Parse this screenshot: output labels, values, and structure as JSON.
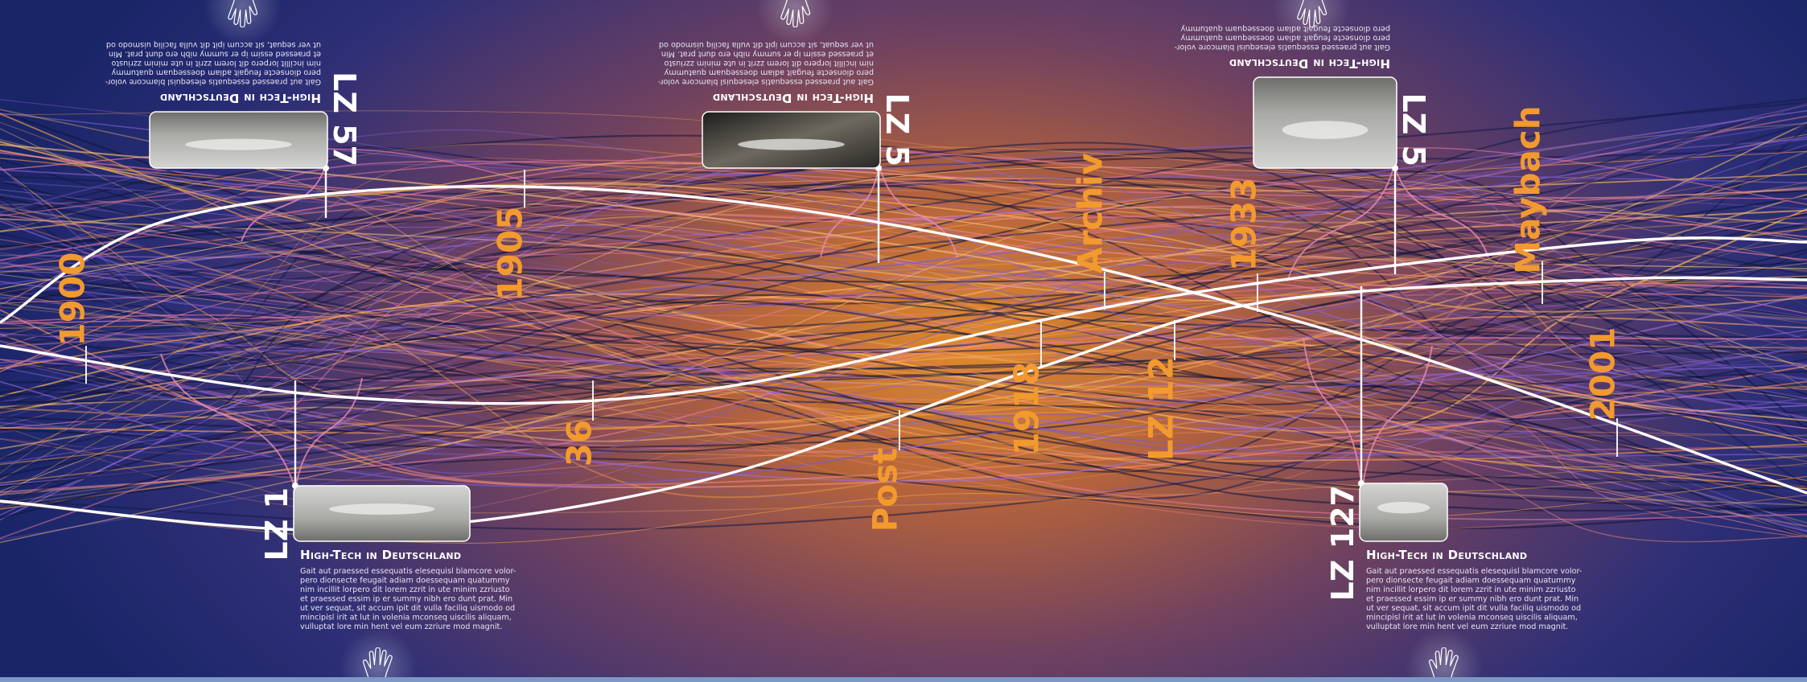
{
  "timeline_labels": [
    "1900",
    "1905",
    "36",
    "Post",
    "1918",
    "Archiv",
    "1933",
    "LZ 12",
    "Maybach",
    "2001"
  ],
  "cards": [
    {
      "label": "LZ 57",
      "heading": "High-Tech in Deutschland",
      "body": [
        "Gait aut praessed essequatis elesequisl blamcore volor-",
        "pero dionsecte feugait adiam doessequam quatummy",
        "nim incillit lorpero dit lorem zzrit in ute minim zzriusto",
        "et praessed essim ip er summy nibh ero dunt prat. Min",
        "ut ver sequat, sit accum ipit dit vulla faciliq uismodo od"
      ]
    },
    {
      "label": "LZ 5",
      "heading": "High-Tech in Deutschland",
      "body": [
        "Gait aut praessed essequatis elesequisl blamcore volor-",
        "pero dionsecte feugait adiam doessequam quatummy",
        "nim incillit lorpero dit lorem zzrit in ute minim zzriusto",
        "et praessed essim ip er summy nibh ero dunt prat. Min",
        "ut ver sequat, sit accum ipit dit vulla faciliq uismodo od"
      ]
    },
    {
      "label": "LZ 5",
      "heading": "High-Tech in Deutschland",
      "body": [
        "Gait aut praessed essequatis elesequisl blamcore volor-",
        "pero dionsecte feugait adiam doessequam quatummy",
        "pero dionsecte feugait adiam doessequam quatummy"
      ]
    },
    {
      "label": "LZ 1",
      "heading": "High-Tech in Deutschland",
      "body": [
        "Gait aut praessed essequatis elesequisl blamcore volor-",
        "pero dionsecte feugait adiam doessequam quatummy",
        "nim incillit lorpero dit lorem zzrit in ute minim zzriusto",
        "et praessed essim ip er summy nibh ero dunt prat. Min",
        "ut ver sequat, sit accum ipit dit vulla faciliq uismodo od",
        "mincipisl irit at lut in volenia mconseq uiscilis aliquam,",
        "vulluptat lore min hent vel eum zzriure mod magnit."
      ]
    },
    {
      "label": "LZ 127",
      "heading": "High-Tech in Deutschland",
      "body": [
        "Gait aut praessed essequatis elesequisl blamcore volor-",
        "pero dionsecte feugait adiam doessequam quatummy",
        "nim incillit lorpero dit lorem zzrit in ute minim zzriusto",
        "et praessed essim ip er summy nibh ero dunt prat. Min",
        "ut ver sequat, sit accum ipit dit vulla faciliq uismodo od",
        "mincipisl irit at lut in volenia mconseq uiscilis aliquam,",
        "vulluptat lore min hent vel eum zzriure mod magnit."
      ]
    }
  ]
}
